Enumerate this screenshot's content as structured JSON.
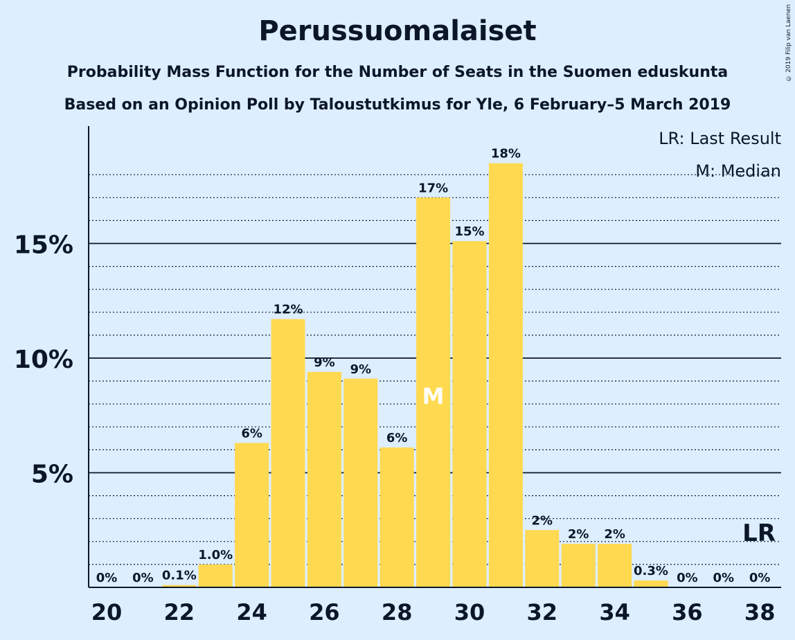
{
  "title": "Perussuomalaiset",
  "subtitle1": "Probability Mass Function for the Number of Seats in the Suomen eduskunta",
  "subtitle2": "Based on an Opinion Poll by Taloustutkimus for Yle, 6 February–5 March 2019",
  "copyright": "© 2019 Filip van Laenen",
  "legend": {
    "last_result": "LR: Last Result",
    "median": "M: Median"
  },
  "colors": {
    "background": "#DDEEFF",
    "bar": "#FFD950",
    "text": "#0B1729"
  },
  "chart_data": {
    "type": "bar",
    "categories": [
      20,
      21,
      22,
      23,
      24,
      25,
      26,
      27,
      28,
      29,
      30,
      31,
      32,
      33,
      34,
      35,
      36,
      37,
      38
    ],
    "values": [
      0,
      0,
      0.1,
      1.0,
      6.3,
      11.7,
      9.4,
      9.1,
      6.1,
      17.0,
      15.1,
      18.5,
      2.5,
      1.9,
      1.9,
      0.3,
      0,
      0,
      0
    ],
    "data_labels": [
      "0%",
      "0%",
      "0.1%",
      "1.0%",
      "6%",
      "12%",
      "9%",
      "9%",
      "6%",
      "17%",
      "15%",
      "18%",
      "2%",
      "2%",
      "2%",
      "0.3%",
      "0%",
      "0%",
      "0%"
    ],
    "x_ticks": [
      20,
      22,
      24,
      26,
      28,
      30,
      32,
      34,
      36,
      38
    ],
    "y_ticks": [
      5,
      10,
      15
    ],
    "y_tick_labels": [
      "5%",
      "10%",
      "15%"
    ],
    "ylim": [
      0,
      20
    ],
    "grid": true,
    "median_seat": 29,
    "median_marker": "M",
    "last_result_seat": 38,
    "last_result_marker": "LR",
    "legend_position": "top-right"
  }
}
